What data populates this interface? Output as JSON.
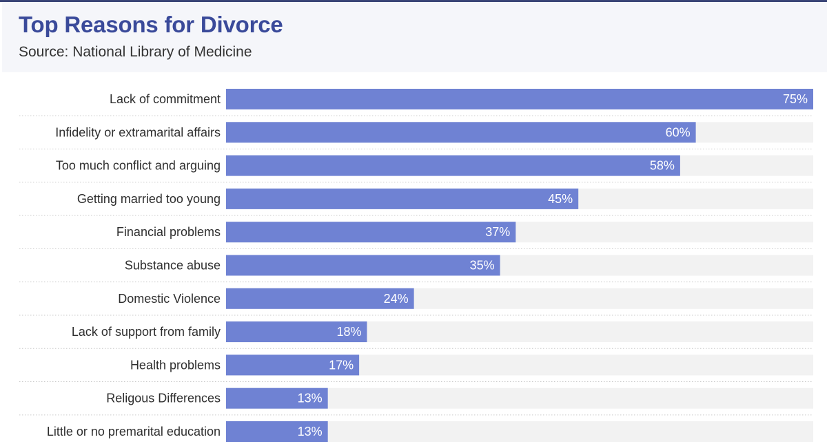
{
  "header": {
    "title": "Top Reasons for Divorce",
    "subtitle": "Source: National Library of Medicine"
  },
  "colors": {
    "bar": "#6f82d3",
    "track": "#f2f2f2",
    "title": "#3a4a9a"
  },
  "chart_data": {
    "type": "bar",
    "orientation": "horizontal",
    "title": "Top Reasons for Divorce",
    "subtitle": "Source: National Library of Medicine",
    "categories": [
      "Lack of commitment",
      "Infidelity or extramarital affairs",
      "Too much conflict and arguing",
      "Getting married too young",
      "Financial problems",
      "Substance abuse",
      "Domestic Violence",
      "Lack of support from family",
      "Health problems",
      "Religous Differences",
      "Little or no premarital education"
    ],
    "values": [
      75,
      60,
      58,
      45,
      37,
      35,
      24,
      18,
      17,
      13,
      13
    ],
    "value_labels": [
      "75%",
      "60%",
      "58%",
      "45%",
      "37%",
      "35%",
      "24%",
      "18%",
      "17%",
      "13%",
      "13%"
    ],
    "xlim": [
      0,
      75
    ],
    "grid": false,
    "legend": "none"
  }
}
